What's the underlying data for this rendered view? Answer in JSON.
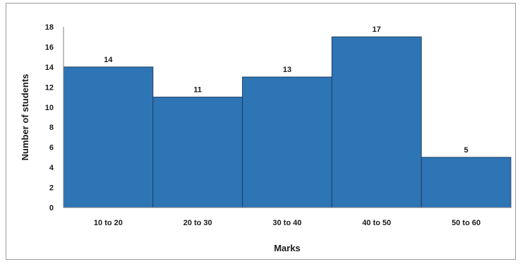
{
  "chart_data": {
    "type": "bar",
    "title": "",
    "xlabel": "Marks",
    "ylabel": "Number of students",
    "categories": [
      "10 to 20",
      "20 to 30",
      "30 to 40",
      "40 to 50",
      "50 to 60"
    ],
    "values": [
      14,
      11,
      13,
      17,
      5
    ],
    "yticks": [
      0,
      2,
      4,
      6,
      8,
      10,
      12,
      14,
      16,
      18
    ],
    "ylim": [
      0,
      18
    ],
    "grid": false,
    "legend": "none",
    "bar_gap": 0,
    "data_labels": true,
    "colors": {
      "bar_fill": "#2e75b6",
      "bar_stroke": "#1f3f63",
      "axis": "#7f7f7f",
      "frame": "#9a9a9a"
    }
  }
}
